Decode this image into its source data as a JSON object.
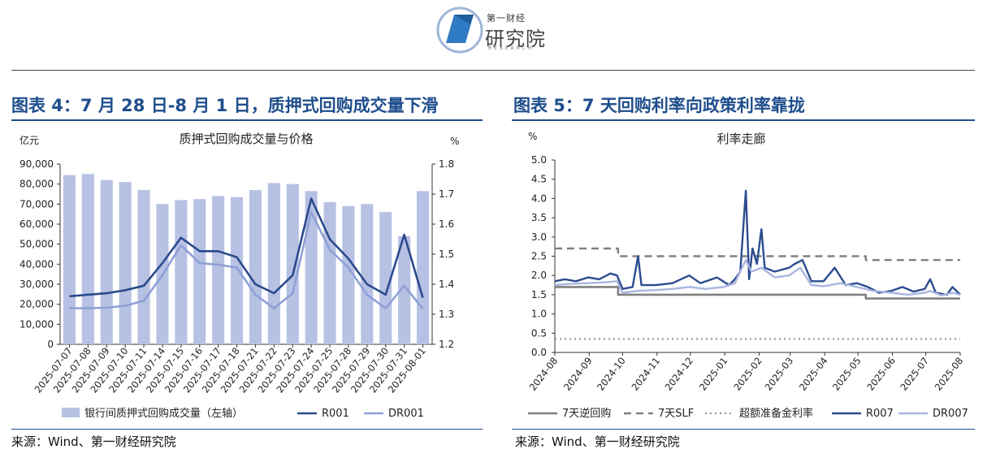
{
  "header": {
    "logo_small": "第一财经",
    "logo_big": "研究院",
    "logo_sub": "RESEARCH"
  },
  "left": {
    "fig_title": "图表 4：7 月 28 日-8 月 1 日，质押式回购成交量下滑",
    "source": "来源：Wind、第一财经研究院"
  },
  "right": {
    "fig_title": "图表 5：7 天回购利率向政策利率靠拢",
    "source": "来源：Wind、第一财经研究院"
  },
  "colors": {
    "bar": "#b7c1e3",
    "r001": "#2a4a8c",
    "dr001": "#8fa0d6",
    "reverse_repo": "#808080",
    "slf": "#808080",
    "excess_reserve": "#909090",
    "r007": "#2b4c8f",
    "dr007": "#aab5e0",
    "title": "#1f4e8c"
  },
  "chart_data": [
    {
      "type": "bar",
      "title": "质押式回购成交量与价格",
      "ylabel_left": "亿元",
      "ylabel_right": "%",
      "ylim_left": [
        0,
        90000
      ],
      "ylim_right": [
        1.2,
        1.8
      ],
      "yticks_left": [
        "0",
        "10,000",
        "20,000",
        "30,000",
        "40,000",
        "50,000",
        "60,000",
        "70,000",
        "80,000",
        "90,000"
      ],
      "yticks_right": [
        "1.2",
        "1.3",
        "1.4",
        "1.5",
        "1.6",
        "1.7",
        "1.8"
      ],
      "categories": [
        "2025-07-07",
        "2025-07-08",
        "2025-07-09",
        "2025-07-10",
        "2025-07-11",
        "2025-07-14",
        "2025-07-15",
        "2025-07-16",
        "2025-07-17",
        "2025-07-18",
        "2025-07-21",
        "2025-07-22",
        "2025-07-23",
        "2025-07-24",
        "2025-07-25",
        "2025-07-28",
        "2025-07-29",
        "2025-07-30",
        "2025-07-31",
        "2025-08-01"
      ],
      "series": [
        {
          "name": "银行间质押式回购成交量（左轴）",
          "axis": "left",
          "kind": "bar",
          "values": [
            84500,
            85000,
            82000,
            81000,
            77000,
            70000,
            72000,
            72500,
            74000,
            73500,
            77000,
            80500,
            80000,
            76500,
            71000,
            69000,
            70000,
            66000,
            54000,
            76500
          ]
        },
        {
          "name": "R001",
          "axis": "right",
          "kind": "line",
          "values": [
            1.36,
            1.365,
            1.37,
            1.38,
            1.395,
            1.47,
            1.555,
            1.51,
            1.51,
            1.49,
            1.4,
            1.37,
            1.43,
            1.685,
            1.55,
            1.485,
            1.4,
            1.365,
            1.565,
            1.355
          ]
        },
        {
          "name": "DR001",
          "axis": "right",
          "kind": "line",
          "values": [
            1.32,
            1.32,
            1.322,
            1.328,
            1.345,
            1.43,
            1.53,
            1.47,
            1.465,
            1.455,
            1.365,
            1.32,
            1.37,
            1.64,
            1.515,
            1.455,
            1.365,
            1.32,
            1.395,
            1.318
          ]
        }
      ]
    },
    {
      "type": "line",
      "title": "利率走廊",
      "ylabel": "%",
      "ylim": [
        0,
        5.0
      ],
      "yticks": [
        "0.0",
        "0.5",
        "1.0",
        "1.5",
        "2.0",
        "2.5",
        "3.0",
        "3.5",
        "4.0",
        "4.5",
        "5.0"
      ],
      "x": [
        "2024-08",
        "2024-09",
        "2024-10",
        "2024-11",
        "2024-12",
        "2025-01",
        "2025-02",
        "2025-03",
        "2025-04",
        "2025-05",
        "2025-06",
        "2025-07",
        "2025-08"
      ],
      "series": [
        {
          "name": "7天逆回购",
          "style": "solid",
          "points": [
            [
              "2024-08",
              1.7
            ],
            [
              "2024-09-27",
              1.7
            ],
            [
              "2024-09-27",
              1.5
            ],
            [
              "2025-05-08",
              1.5
            ],
            [
              "2025-05-08",
              1.4
            ],
            [
              "2025-08",
              1.4
            ]
          ]
        },
        {
          "name": "7天SLF",
          "style": "dashed",
          "points": [
            [
              "2024-08",
              2.7
            ],
            [
              "2024-09-27",
              2.7
            ],
            [
              "2024-09-27",
              2.5
            ],
            [
              "2025-05-08",
              2.5
            ],
            [
              "2025-05-08",
              2.4
            ],
            [
              "2025-08",
              2.4
            ]
          ]
        },
        {
          "name": "超额准备金利率",
          "style": "dotted",
          "points": [
            [
              "2024-08",
              0.35
            ],
            [
              "2025-08",
              0.35
            ]
          ]
        },
        {
          "name": "R007",
          "style": "solid",
          "points": [
            [
              "2024-08-01",
              1.85
            ],
            [
              "2024-08-10",
              1.9
            ],
            [
              "2024-08-20",
              1.85
            ],
            [
              "2024-08-31",
              1.95
            ],
            [
              "2024-09-10",
              1.9
            ],
            [
              "2024-09-20",
              2.05
            ],
            [
              "2024-09-26",
              2.0
            ],
            [
              "2024-10-01",
              1.65
            ],
            [
              "2024-10-10",
              1.7
            ],
            [
              "2024-10-15",
              2.5
            ],
            [
              "2024-10-18",
              1.75
            ],
            [
              "2024-10-31",
              1.75
            ],
            [
              "2024-11-15",
              1.8
            ],
            [
              "2024-11-30",
              2.0
            ],
            [
              "2024-12-10",
              1.8
            ],
            [
              "2024-12-25",
              1.95
            ],
            [
              "2025-01-05",
              1.75
            ],
            [
              "2025-01-10",
              1.9
            ],
            [
              "2025-01-15",
              2.1
            ],
            [
              "2025-01-20",
              4.2
            ],
            [
              "2025-01-23",
              1.9
            ],
            [
              "2025-01-26",
              2.7
            ],
            [
              "2025-01-30",
              2.3
            ],
            [
              "2025-02-03",
              3.2
            ],
            [
              "2025-02-06",
              2.2
            ],
            [
              "2025-02-15",
              2.1
            ],
            [
              "2025-02-28",
              2.2
            ],
            [
              "2025-03-05",
              2.3
            ],
            [
              "2025-03-12",
              2.4
            ],
            [
              "2025-03-20",
              1.85
            ],
            [
              "2025-03-31",
              1.85
            ],
            [
              "2025-04-10",
              2.2
            ],
            [
              "2025-04-20",
              1.75
            ],
            [
              "2025-04-30",
              1.8
            ],
            [
              "2025-05-10",
              1.7
            ],
            [
              "2025-05-20",
              1.55
            ],
            [
              "2025-05-31",
              1.6
            ],
            [
              "2025-06-10",
              1.7
            ],
            [
              "2025-06-20",
              1.58
            ],
            [
              "2025-06-30",
              1.65
            ],
            [
              "2025-07-05",
              1.9
            ],
            [
              "2025-07-10",
              1.55
            ],
            [
              "2025-07-20",
              1.5
            ],
            [
              "2025-07-25",
              1.7
            ],
            [
              "2025-08-01",
              1.5
            ]
          ]
        },
        {
          "name": "DR007",
          "style": "solid",
          "points": [
            [
              "2024-08-01",
              1.75
            ],
            [
              "2024-08-15",
              1.78
            ],
            [
              "2024-08-31",
              1.8
            ],
            [
              "2024-09-15",
              1.82
            ],
            [
              "2024-09-26",
              1.85
            ],
            [
              "2024-10-01",
              1.55
            ],
            [
              "2024-10-15",
              1.6
            ],
            [
              "2024-10-31",
              1.62
            ],
            [
              "2024-11-15",
              1.65
            ],
            [
              "2024-11-30",
              1.7
            ],
            [
              "2024-12-15",
              1.65
            ],
            [
              "2024-12-31",
              1.7
            ],
            [
              "2025-01-10",
              1.8
            ],
            [
              "2025-01-20",
              2.4
            ],
            [
              "2025-01-25",
              2.1
            ],
            [
              "2025-02-03",
              2.2
            ],
            [
              "2025-02-15",
              1.95
            ],
            [
              "2025-02-28",
              2.0
            ],
            [
              "2025-03-10",
              2.2
            ],
            [
              "2025-03-20",
              1.75
            ],
            [
              "2025-03-31",
              1.72
            ],
            [
              "2025-04-15",
              1.8
            ],
            [
              "2025-04-30",
              1.7
            ],
            [
              "2025-05-15",
              1.6
            ],
            [
              "2025-05-31",
              1.55
            ],
            [
              "2025-06-15",
              1.5
            ],
            [
              "2025-06-30",
              1.55
            ],
            [
              "2025-07-05",
              1.6
            ],
            [
              "2025-07-15",
              1.48
            ],
            [
              "2025-07-25",
              1.55
            ],
            [
              "2025-08-01",
              1.5
            ]
          ]
        }
      ]
    }
  ]
}
